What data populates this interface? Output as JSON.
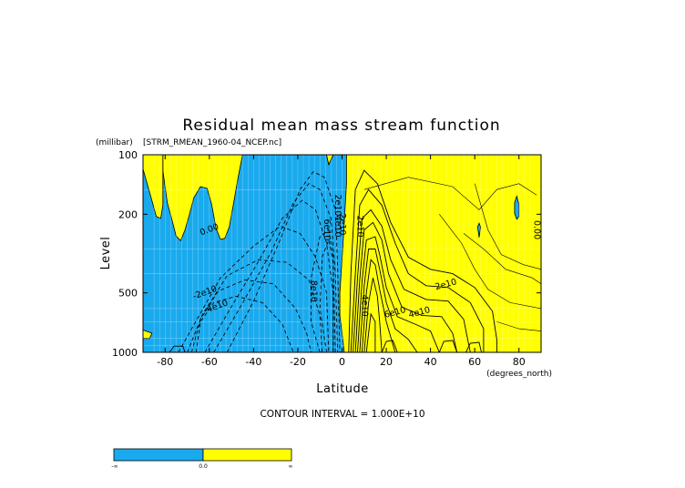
{
  "chart_data": {
    "type": "heatmap",
    "title": "Residual mean mass stream function",
    "subtitle": "[STRM_RMEAN_1960-04_NCEP.nc]",
    "ylabel": "Level",
    "yunits": "(millibar)",
    "xlabel": "Latitude",
    "xunits": "(degrees_north)",
    "xlim": [
      -90,
      90
    ],
    "ylim": [
      1000,
      100
    ],
    "y_scale": "log",
    "x_ticks": [
      -80,
      -60,
      -40,
      -20,
      0,
      20,
      40,
      60,
      80
    ],
    "y_ticks": [
      100,
      200,
      500,
      1000
    ],
    "grid": true,
    "fill_colors": {
      "negative": "#19aaee",
      "positive": "#ffff00"
    },
    "contour_interval_text": "CONTOUR INTERVAL = 1.000E+10",
    "contour_labels": [
      {
        "text": "0.00",
        "lat": -60,
        "lev": 240
      },
      {
        "text": "0.00",
        "lat": 88,
        "lev": 240
      },
      {
        "text": "2e10",
        "lat": 0,
        "lev": 225
      },
      {
        "text": "4e10",
        "lat": -2,
        "lev": 230
      },
      {
        "text": "6e10",
        "lat": -7,
        "lev": 240
      },
      {
        "text": "2e10",
        "lat": -2,
        "lev": 180
      },
      {
        "text": "8e10",
        "lat": -13,
        "lev": 490
      },
      {
        "text": "-2e10",
        "lat": -62,
        "lev": 500
      },
      {
        "text": "-4e10",
        "lat": -57,
        "lev": 590
      },
      {
        "text": "2e10",
        "lat": 8,
        "lev": 230
      },
      {
        "text": "4e10",
        "lat": 10,
        "lev": 580
      },
      {
        "text": "2e10",
        "lat": 47,
        "lev": 455
      },
      {
        "text": "6e10",
        "lat": 24,
        "lev": 630
      },
      {
        "text": "4e10",
        "lat": 35,
        "lev": 630
      }
    ],
    "colorbar": {
      "labels": [
        "-∞",
        "0.0",
        "∞"
      ],
      "colors": [
        "#19aaee",
        "#ffff00"
      ]
    }
  }
}
